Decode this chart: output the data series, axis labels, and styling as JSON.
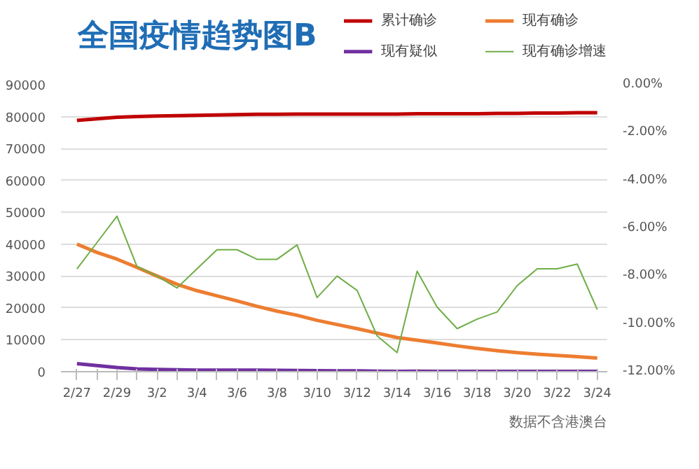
{
  "chart_data": {
    "type": "line",
    "title": "全国疫情趋势图B",
    "categories": [
      "2/27",
      null,
      "2/29",
      null,
      "3/2",
      null,
      "3/4",
      null,
      "3/6",
      null,
      "3/8",
      null,
      "3/10",
      null,
      "3/12",
      null,
      "3/14",
      null,
      "3/16",
      null,
      "3/18",
      null,
      "3/20",
      null,
      "3/22",
      null,
      "3/24"
    ],
    "series": [
      {
        "name": "累计确诊",
        "color": "#c00000",
        "values": [
          78800,
          79300,
          79800,
          80000,
          80200,
          80300,
          80400,
          80500,
          80600,
          80700,
          80700,
          80800,
          80800,
          80800,
          80800,
          80800,
          80800,
          80900,
          80900,
          80900,
          80900,
          81000,
          81000,
          81100,
          81100,
          81200,
          81200
        ]
      },
      {
        "name": "现有确诊",
        "color": "#ed7d31",
        "values": [
          40000,
          37400,
          35300,
          32700,
          30000,
          27400,
          25400,
          23800,
          22200,
          20500,
          19000,
          17700,
          16100,
          14800,
          13500,
          12100,
          10700,
          9900,
          9000,
          8100,
          7300,
          6600,
          6000,
          5500,
          5100,
          4700,
          4300
        ]
      },
      {
        "name": "现有疑似",
        "color": "#7030a0",
        "values": [
          2500,
          1900,
          1300,
          900,
          700,
          600,
          500,
          500,
          500,
          500,
          450,
          400,
          350,
          300,
          250,
          150,
          100,
          150,
          100,
          100,
          100,
          100,
          100,
          100,
          100,
          100,
          100
        ]
      },
      {
        "name": "现有确诊增速",
        "color": "#70ad47",
        "axis": "y2",
        "values": [
          -7.7,
          -6.6,
          -5.5,
          -7.6,
          -8.0,
          -8.5,
          -7.7,
          -6.9,
          -6.9,
          -7.3,
          -7.3,
          -6.7,
          -8.9,
          -8.0,
          -8.6,
          -10.5,
          -11.2,
          -7.8,
          -9.3,
          -10.2,
          -9.8,
          -9.5,
          -8.4,
          -7.7,
          -7.7,
          -7.5,
          -9.4
        ]
      }
    ],
    "ylim": [
      0,
      90000
    ],
    "yticks": [
      0,
      10000,
      20000,
      30000,
      40000,
      50000,
      60000,
      70000,
      80000,
      90000
    ],
    "y2lim": [
      -12,
      0
    ],
    "y2ticks": [
      {
        "value": 0,
        "label": "0.00%"
      },
      {
        "value": -2,
        "label": "-2.00%"
      },
      {
        "value": -4,
        "label": "-4.00%"
      },
      {
        "value": -6,
        "label": "-6.00%"
      },
      {
        "value": -8,
        "label": "-8.00%"
      },
      {
        "value": -10,
        "label": "-10.00%"
      },
      {
        "value": -12,
        "label": "-12.00%"
      }
    ],
    "grid": "y",
    "legend": "top right",
    "annotations": [
      "数据不含港澳台"
    ]
  }
}
